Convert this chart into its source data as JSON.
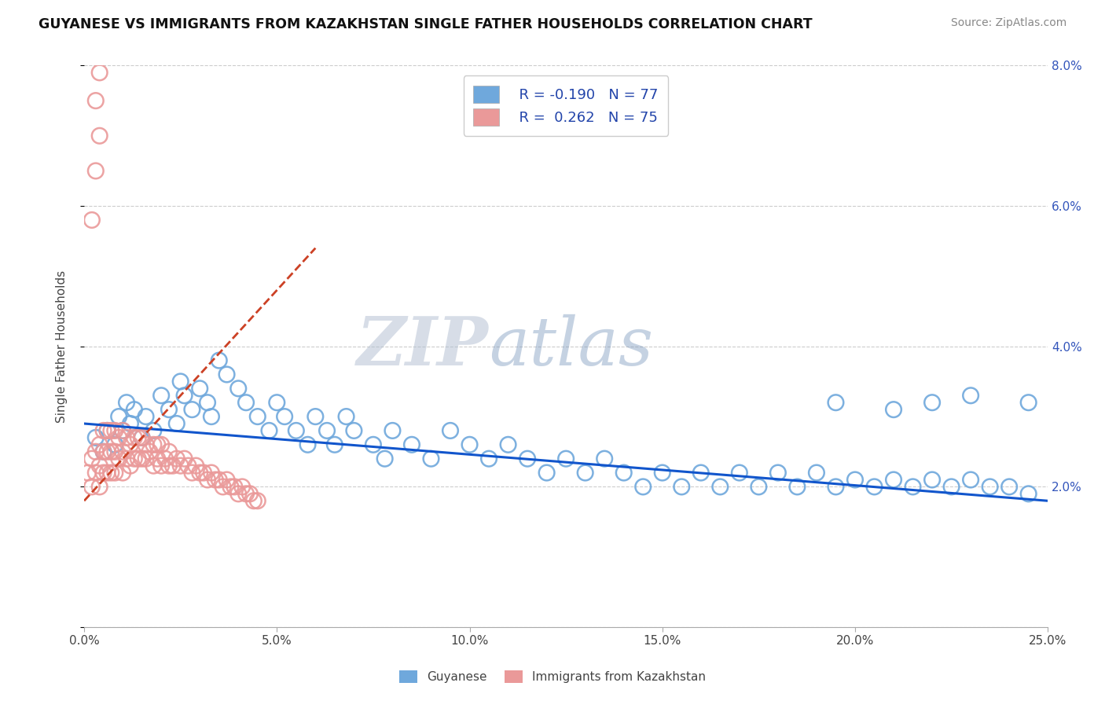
{
  "title": "GUYANESE VS IMMIGRANTS FROM KAZAKHSTAN SINGLE FATHER HOUSEHOLDS CORRELATION CHART",
  "source": "Source: ZipAtlas.com",
  "ylabel": "Single Father Households",
  "xlim": [
    0.0,
    0.25
  ],
  "ylim": [
    0.0,
    0.08
  ],
  "xtick_vals": [
    0.0,
    0.05,
    0.1,
    0.15,
    0.2,
    0.25
  ],
  "xtick_labels": [
    "0.0%",
    "5.0%",
    "10.0%",
    "15.0%",
    "20.0%",
    "25.0%"
  ],
  "ytick_vals": [
    0.0,
    0.02,
    0.04,
    0.06,
    0.08
  ],
  "ytick_labels": [
    "",
    "2.0%",
    "4.0%",
    "6.0%",
    "8.0%"
  ],
  "legend_r1": "R = -0.190",
  "legend_n1": "N = 77",
  "legend_r2": "R =  0.262",
  "legend_n2": "N = 75",
  "blue_color": "#6fa8dc",
  "pink_color": "#ea9999",
  "blue_line_color": "#1155cc",
  "pink_line_color": "#cc4125",
  "watermark_zip": "ZIP",
  "watermark_atlas": "atlas",
  "watermark_color_zip": "#b0bdd0",
  "watermark_color_atlas": "#7090b8",
  "blue_scatter_x": [
    0.003,
    0.005,
    0.006,
    0.008,
    0.009,
    0.01,
    0.011,
    0.012,
    0.013,
    0.015,
    0.016,
    0.018,
    0.02,
    0.022,
    0.024,
    0.025,
    0.026,
    0.028,
    0.03,
    0.032,
    0.033,
    0.035,
    0.037,
    0.04,
    0.042,
    0.045,
    0.048,
    0.05,
    0.052,
    0.055,
    0.058,
    0.06,
    0.063,
    0.065,
    0.068,
    0.07,
    0.075,
    0.078,
    0.08,
    0.085,
    0.09,
    0.095,
    0.1,
    0.105,
    0.11,
    0.115,
    0.12,
    0.125,
    0.13,
    0.135,
    0.14,
    0.145,
    0.15,
    0.155,
    0.16,
    0.165,
    0.17,
    0.175,
    0.18,
    0.185,
    0.19,
    0.195,
    0.2,
    0.205,
    0.21,
    0.215,
    0.22,
    0.225,
    0.23,
    0.235,
    0.24,
    0.245,
    0.195,
    0.21,
    0.22,
    0.23,
    0.245
  ],
  "blue_scatter_y": [
    0.027,
    0.025,
    0.028,
    0.026,
    0.03,
    0.028,
    0.032,
    0.029,
    0.031,
    0.027,
    0.03,
    0.028,
    0.033,
    0.031,
    0.029,
    0.035,
    0.033,
    0.031,
    0.034,
    0.032,
    0.03,
    0.038,
    0.036,
    0.034,
    0.032,
    0.03,
    0.028,
    0.032,
    0.03,
    0.028,
    0.026,
    0.03,
    0.028,
    0.026,
    0.03,
    0.028,
    0.026,
    0.024,
    0.028,
    0.026,
    0.024,
    0.028,
    0.026,
    0.024,
    0.026,
    0.024,
    0.022,
    0.024,
    0.022,
    0.024,
    0.022,
    0.02,
    0.022,
    0.02,
    0.022,
    0.02,
    0.022,
    0.02,
    0.022,
    0.02,
    0.022,
    0.02,
    0.021,
    0.02,
    0.021,
    0.02,
    0.021,
    0.02,
    0.021,
    0.02,
    0.02,
    0.019,
    0.032,
    0.031,
    0.032,
    0.033,
    0.032
  ],
  "pink_scatter_x": [
    0.001,
    0.002,
    0.002,
    0.003,
    0.003,
    0.004,
    0.004,
    0.004,
    0.005,
    0.005,
    0.005,
    0.006,
    0.006,
    0.006,
    0.007,
    0.007,
    0.007,
    0.008,
    0.008,
    0.008,
    0.009,
    0.009,
    0.01,
    0.01,
    0.01,
    0.011,
    0.011,
    0.012,
    0.012,
    0.013,
    0.013,
    0.014,
    0.014,
    0.015,
    0.015,
    0.016,
    0.016,
    0.017,
    0.018,
    0.018,
    0.019,
    0.019,
    0.02,
    0.02,
    0.021,
    0.022,
    0.022,
    0.023,
    0.024,
    0.025,
    0.026,
    0.027,
    0.028,
    0.029,
    0.03,
    0.031,
    0.032,
    0.033,
    0.034,
    0.035,
    0.036,
    0.037,
    0.038,
    0.039,
    0.04,
    0.041,
    0.042,
    0.043,
    0.044,
    0.045,
    0.002,
    0.003,
    0.004,
    0.003,
    0.004
  ],
  "pink_scatter_y": [
    0.022,
    0.02,
    0.024,
    0.022,
    0.025,
    0.02,
    0.023,
    0.026,
    0.022,
    0.025,
    0.028,
    0.022,
    0.025,
    0.028,
    0.022,
    0.025,
    0.028,
    0.022,
    0.025,
    0.028,
    0.024,
    0.027,
    0.022,
    0.025,
    0.028,
    0.024,
    0.027,
    0.023,
    0.026,
    0.024,
    0.027,
    0.024,
    0.027,
    0.024,
    0.027,
    0.024,
    0.026,
    0.025,
    0.023,
    0.026,
    0.024,
    0.026,
    0.023,
    0.026,
    0.024,
    0.023,
    0.025,
    0.023,
    0.024,
    0.023,
    0.024,
    0.023,
    0.022,
    0.023,
    0.022,
    0.022,
    0.021,
    0.022,
    0.021,
    0.021,
    0.02,
    0.021,
    0.02,
    0.02,
    0.019,
    0.02,
    0.019,
    0.019,
    0.018,
    0.018,
    0.058,
    0.065,
    0.07,
    0.075,
    0.079
  ],
  "blue_trend_x": [
    0.0,
    0.25
  ],
  "blue_trend_y": [
    0.029,
    0.018
  ],
  "pink_trend_x": [
    0.0,
    0.06
  ],
  "pink_trend_y": [
    0.018,
    0.054
  ]
}
